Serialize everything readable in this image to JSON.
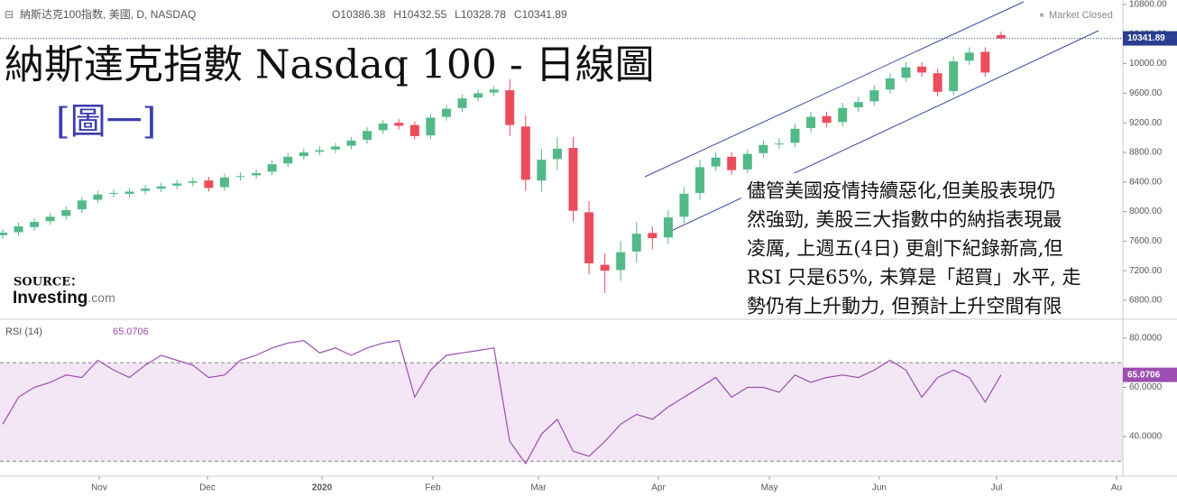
{
  "header": {
    "symbol": "納斯达克100指数, 美國, D, NASDAQ",
    "ohlc_labels": [
      "O",
      "H",
      "L",
      "C"
    ],
    "status": "Market Closed"
  },
  "chart_data": [
    {
      "type": "candlestick",
      "title": "納斯達克指數 Nasdaq 100 - 日線圖",
      "subtitle": "[圖一]",
      "annotation": [
        "儘管美國疫情持續惡化,但美股表現仍",
        "然強勁, 美股三大指數中的納指表現最",
        "凌厲, 上週五(4日) 更創下紀錄新高,但",
        "RSI 只是65%, 未算是「超買」水平, 走",
        "勢仍有上升動力, 但預計上升空間有限"
      ],
      "source_label": "SOURCE：",
      "source": [
        "Investing",
        ".com"
      ],
      "up_color": "#53b987",
      "down_color": "#eb4d5c",
      "open": [
        7680,
        7720,
        7790,
        7870,
        7940,
        8030,
        8160,
        8240,
        8240,
        8280,
        8310,
        8350,
        8390,
        8420,
        8330,
        8470,
        8490,
        8540,
        8650,
        8750,
        8810,
        8840,
        8890,
        8970,
        9100,
        9200,
        9170,
        9030,
        9280,
        9400,
        9540,
        9610,
        9640,
        9150,
        8420,
        8710,
        8860,
        7990,
        7280,
        7210,
        7460,
        7710,
        7650,
        7930,
        8250,
        8610,
        8740,
        8570,
        8790,
        8910,
        8930,
        9130,
        9290,
        9210,
        9410,
        9490,
        9650,
        9810,
        9960,
        9870,
        9630,
        10040,
        10160,
        10386.38
      ],
      "high": [
        7765,
        7850,
        7910,
        7980,
        8070,
        8200,
        8280,
        8300,
        8320,
        8360,
        8390,
        8430,
        8460,
        8470,
        8510,
        8530,
        8570,
        8690,
        8790,
        8850,
        8880,
        8930,
        9010,
        9140,
        9240,
        9250,
        9220,
        9320,
        9440,
        9580,
        9650,
        9700,
        9790,
        9300,
        8850,
        9010,
        9010,
        8140,
        7430,
        7600,
        7860,
        7800,
        8020,
        8330,
        8700,
        8800,
        8800,
        8840,
        8960,
        8990,
        9190,
        9350,
        9350,
        9470,
        9550,
        9710,
        9870,
        10020,
        10020,
        9930,
        10100,
        10220,
        10220,
        10432.55
      ],
      "low": [
        7630,
        7670,
        7740,
        7820,
        7890,
        7980,
        8110,
        8190,
        8190,
        8230,
        8260,
        8300,
        8340,
        8270,
        8280,
        8420,
        8440,
        8490,
        8600,
        8700,
        8760,
        8790,
        8840,
        8920,
        9050,
        9110,
        8970,
        8980,
        9230,
        9350,
        9490,
        9560,
        9020,
        8280,
        8270,
        8560,
        7860,
        7150,
        6900,
        7060,
        7310,
        7490,
        7560,
        7840,
        8160,
        8550,
        8500,
        8510,
        8730,
        8850,
        8870,
        9070,
        9140,
        9150,
        9350,
        9430,
        9590,
        9750,
        9820,
        9560,
        9570,
        9980,
        9820,
        10328.78
      ],
      "close": [
        7715,
        7800,
        7860,
        7930,
        8020,
        8150,
        8230,
        8250,
        8270,
        8310,
        8340,
        8380,
        8410,
        8320,
        8460,
        8480,
        8520,
        8640,
        8740,
        8800,
        8830,
        8880,
        8960,
        9090,
        9190,
        9160,
        9020,
        9270,
        9390,
        9530,
        9600,
        9650,
        9170,
        8430,
        8700,
        8850,
        8010,
        7300,
        7200,
        7450,
        7700,
        7640,
        7920,
        8240,
        8600,
        8730,
        8560,
        8780,
        8900,
        8920,
        9120,
        9280,
        9200,
        9400,
        9480,
        9640,
        9800,
        9950,
        9880,
        9620,
        10030,
        10150,
        9880,
        10341.89
      ],
      "xlim": [
        -0.17,
        70.69
      ],
      "ylim": [
        6568,
        10861
      ],
      "yticks": [
        {
          "value": 6800,
          "label": "6800.00"
        },
        {
          "value": 7200,
          "label": "7200.00"
        },
        {
          "value": 7600,
          "label": "7600.00"
        },
        {
          "value": 8000,
          "label": "8000.00"
        },
        {
          "value": 8400,
          "label": "8400.00"
        },
        {
          "value": 8800,
          "label": "8800.00"
        },
        {
          "value": 9200,
          "label": "9200.00"
        },
        {
          "value": 9600,
          "label": "9600.00"
        },
        {
          "value": 10000,
          "label": "10000.00"
        },
        {
          "value": 10400,
          "label": "10400.00"
        },
        {
          "value": 10800,
          "label": "10800.00"
        }
      ]
    },
    {
      "type": "line",
      "name": "RSI (14)",
      "color": "#9c4fb0",
      "values": [
        45,
        56,
        60,
        62,
        65,
        64,
        71,
        67,
        64,
        69,
        73,
        71,
        69,
        64,
        65,
        71,
        73,
        76,
        78,
        79,
        74,
        76,
        73,
        76,
        78,
        79,
        56,
        67,
        73,
        74,
        75,
        76,
        38,
        29,
        41,
        47,
        34,
        32,
        38,
        45,
        49,
        47,
        52,
        56,
        60,
        64,
        56,
        60,
        60,
        58,
        65,
        62,
        64,
        65,
        64,
        67,
        71,
        67,
        56,
        64,
        67,
        64,
        54,
        65.0706
      ],
      "bands": [
        30,
        70
      ],
      "xlim": [
        -0.17,
        70.69
      ],
      "ylim": [
        23.9,
        86.2
      ],
      "yticks": [
        {
          "value": 40,
          "label": "40.0000"
        },
        {
          "value": 60,
          "label": "60.0000"
        },
        {
          "value": 80,
          "label": "80.0000"
        }
      ],
      "xticks": [
        {
          "value": 6.09,
          "label": "Nov"
        },
        {
          "value": 12.92,
          "label": "Dec"
        },
        {
          "value": 20.15,
          "label": "2020"
        },
        {
          "value": 27.15,
          "label": "Feb"
        },
        {
          "value": 33.81,
          "label": "Mar"
        },
        {
          "value": 41.38,
          "label": "Apr"
        },
        {
          "value": 48.38,
          "label": "May"
        },
        {
          "value": 55.32,
          "label": "Jun"
        },
        {
          "value": 62.72,
          "label": "Jul"
        },
        {
          "value": 70.29,
          "label": "Au"
        }
      ]
    }
  ]
}
